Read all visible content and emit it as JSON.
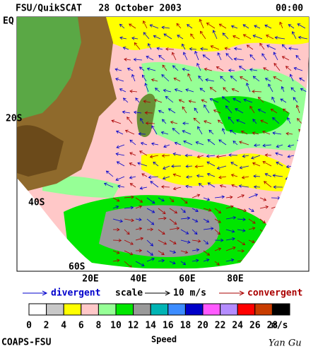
{
  "header": {
    "title": "FSU/QuikSCAT   28 October 2003",
    "time": "00:00"
  },
  "map": {
    "lat_labels": [
      "EQ",
      "20S",
      "40S",
      "60S"
    ],
    "lon_labels": [
      "20E",
      "40E",
      "60E",
      "80E"
    ]
  },
  "legend": {
    "divergent": "divergent",
    "scale": "scale",
    "scale_value": "10 m/s",
    "convergent": "convergent"
  },
  "colorbar": {
    "colors": [
      "#ffffff",
      "#c8c8c8",
      "#ffff00",
      "#ffc8c8",
      "#96ff96",
      "#00e600",
      "#999999",
      "#00b4b4",
      "#3c8cff",
      "#0000c8",
      "#ff5aff",
      "#b48cff",
      "#ff0000",
      "#c83c00",
      "#000000"
    ],
    "labels": [
      0,
      2,
      4,
      6,
      8,
      10,
      12,
      14,
      16,
      18,
      20,
      22,
      24,
      26,
      28
    ],
    "unit": "m/s",
    "title": "Speed"
  },
  "footer": {
    "left": "COAPS-FSU",
    "right": "Yan Gu"
  }
}
